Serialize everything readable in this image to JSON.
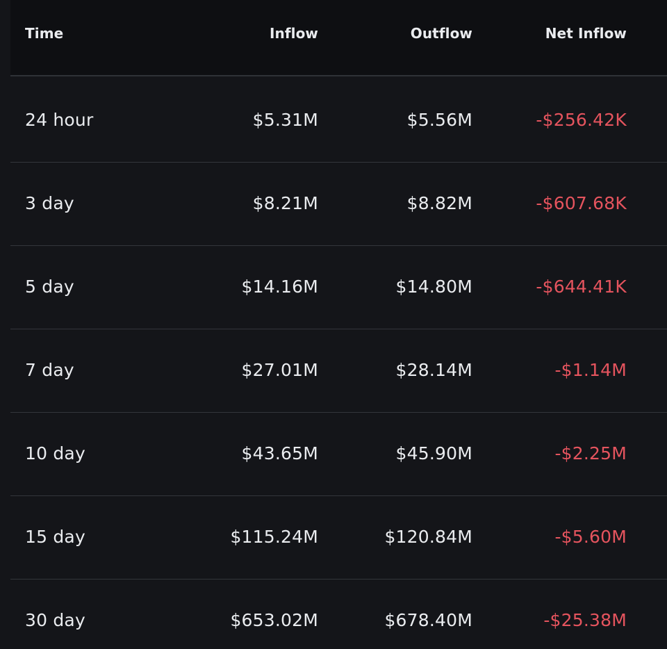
{
  "table": {
    "headers": {
      "time": "Time",
      "inflow": "Inflow",
      "outflow": "Outflow",
      "net_inflow": "Net Inflow"
    },
    "rows": [
      {
        "time": "24 hour",
        "inflow": "$5.31M",
        "outflow": "$5.56M",
        "net_inflow": "-$256.42K"
      },
      {
        "time": "3 day",
        "inflow": "$8.21M",
        "outflow": "$8.82M",
        "net_inflow": "-$607.68K"
      },
      {
        "time": "5 day",
        "inflow": "$14.16M",
        "outflow": "$14.80M",
        "net_inflow": "-$644.41K"
      },
      {
        "time": "7 day",
        "inflow": "$27.01M",
        "outflow": "$28.14M",
        "net_inflow": "-$1.14M"
      },
      {
        "time": "10 day",
        "inflow": "$43.65M",
        "outflow": "$45.90M",
        "net_inflow": "-$2.25M"
      },
      {
        "time": "15 day",
        "inflow": "$115.24M",
        "outflow": "$120.84M",
        "net_inflow": "-$5.60M"
      },
      {
        "time": "30 day",
        "inflow": "$653.02M",
        "outflow": "$678.40M",
        "net_inflow": "-$25.38M"
      }
    ]
  },
  "colors": {
    "background": "#141519",
    "header_background": "#0e0f12",
    "text": "#eaecef",
    "negative": "#e5545e"
  }
}
